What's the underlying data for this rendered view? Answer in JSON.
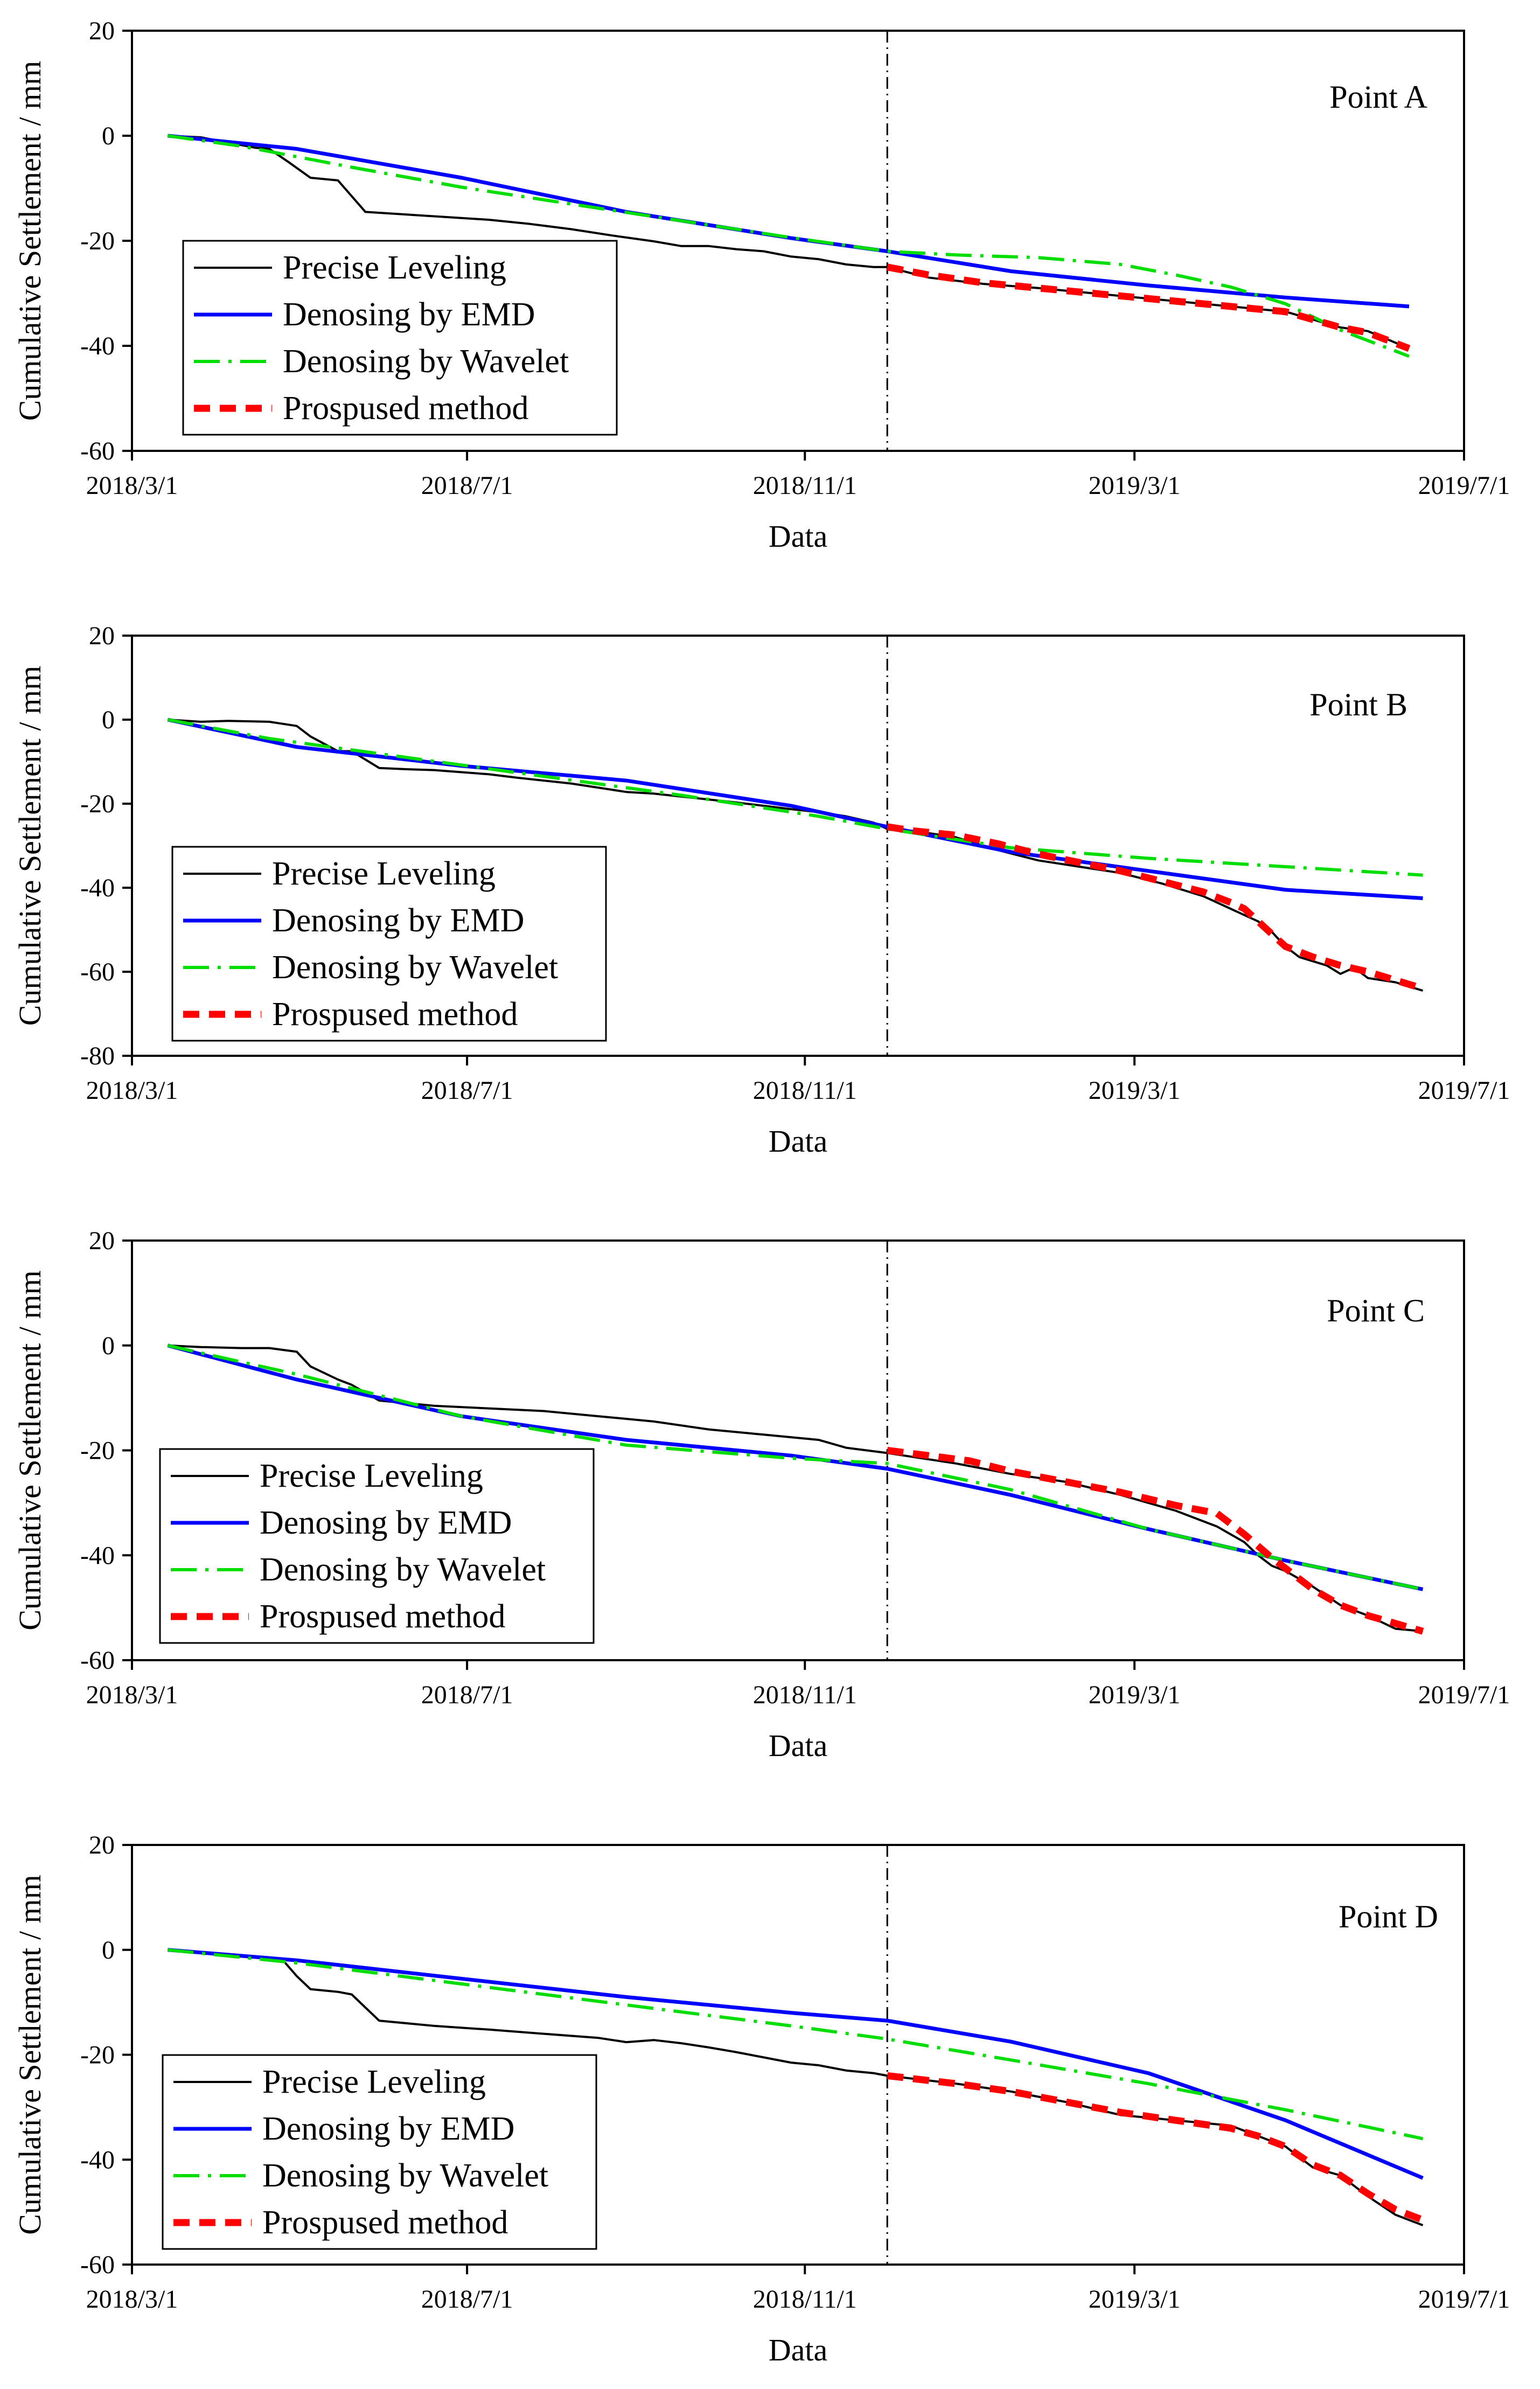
{
  "figure": {
    "x_axis_label": "Data",
    "y_axis_label": "Cumulative Settlement / mm",
    "x_tick_labels": [
      "2018/3/1",
      "2018/7/1",
      "2018/11/1",
      "2019/3/1",
      "2019/7/1"
    ]
  },
  "colors": {
    "precise": "#000000",
    "emd": "#0000ff",
    "wavelet": "#00dd00",
    "proposed": "#ff0000"
  },
  "legend": [
    "Precise Leveling",
    "Denosing by EMD",
    "Denosing by Wavelet",
    "Prospused method"
  ],
  "chart_data": [
    {
      "type": "line",
      "title": "Point A",
      "xlabel": "Data",
      "ylabel": "Cumulative Settlement / mm",
      "x_unit": "days since 2018-03-01",
      "xlim": [
        0,
        485
      ],
      "ylim": [
        -60,
        20
      ],
      "yticks": [
        -60,
        -40,
        -20,
        0,
        20
      ],
      "split_day": 275,
      "series": [
        {
          "name": "Precise Leveling",
          "x": [
            13,
            25,
            45,
            50,
            57,
            65,
            75,
            85,
            100,
            115,
            130,
            145,
            160,
            175,
            190,
            200,
            210,
            220,
            230,
            240,
            250,
            260,
            270,
            275,
            290,
            310,
            330,
            350,
            370,
            390,
            410,
            420,
            430,
            440,
            450,
            465
          ],
          "y": [
            0,
            -0.3,
            -2.3,
            -2.5,
            -5,
            -8,
            -8.5,
            -14.5,
            -15,
            -15.5,
            -16,
            -16.8,
            -17.8,
            -19,
            -20.1,
            -21,
            -21,
            -21.6,
            -22,
            -23,
            -23.5,
            -24.5,
            -25,
            -25,
            -27,
            -28.2,
            -29,
            -30,
            -31,
            -32,
            -33,
            -33.5,
            -35,
            -36.5,
            -37.2,
            -40.5
          ]
        },
        {
          "name": "Denosing by EMD",
          "x": [
            13,
            60,
            120,
            180,
            240,
            275,
            320,
            370,
            420,
            465
          ],
          "y": [
            0,
            -2.5,
            -8,
            -14.5,
            -19.5,
            -22,
            -25.8,
            -28.5,
            -30.8,
            -32.5
          ]
        },
        {
          "name": "Denosing by Wavelet",
          "x": [
            13,
            40,
            80,
            120,
            160,
            200,
            240,
            275,
            300,
            330,
            360,
            380,
            400,
            420,
            440,
            465
          ],
          "y": [
            0,
            -2,
            -6,
            -9.8,
            -13,
            -16.2,
            -19.4,
            -22,
            -22.7,
            -23.2,
            -24.5,
            -26.5,
            -28.8,
            -32,
            -37,
            -42
          ]
        },
        {
          "name": "Prospused method",
          "x": [
            275,
            290,
            310,
            330,
            350,
            370,
            390,
            410,
            420,
            430,
            440,
            450,
            465
          ],
          "y": [
            -25,
            -26.5,
            -28,
            -29,
            -30,
            -31,
            -32,
            -33,
            -33.5,
            -35,
            -36.5,
            -37.5,
            -40.5
          ]
        }
      ]
    },
    {
      "type": "line",
      "title": "Point B",
      "xlabel": "Data",
      "ylabel": "Cumulative Settlement / mm",
      "x_unit": "days since 2018-03-01",
      "xlim": [
        0,
        485
      ],
      "ylim": [
        -80,
        20
      ],
      "yticks": [
        -80,
        -60,
        -40,
        -20,
        0,
        20
      ],
      "split_day": 275,
      "series": [
        {
          "name": "Precise Leveling",
          "x": [
            13,
            25,
            35,
            50,
            60,
            65,
            75,
            80,
            90,
            100,
            110,
            120,
            130,
            140,
            150,
            160,
            170,
            180,
            190,
            200,
            210,
            220,
            230,
            240,
            250,
            260,
            270,
            275,
            285,
            300,
            315,
            330,
            345,
            360,
            375,
            390,
            400,
            410,
            415,
            420,
            425,
            435,
            440,
            445,
            450,
            460,
            470
          ],
          "y": [
            0,
            -0.5,
            -0.3,
            -0.5,
            -1.5,
            -4,
            -7.5,
            -7.5,
            -11.5,
            -11.8,
            -12,
            -12.5,
            -13,
            -13.8,
            -14.5,
            -15.2,
            -16.2,
            -17.2,
            -17.6,
            -18.3,
            -19,
            -19.7,
            -20.5,
            -21.3,
            -22,
            -23,
            -24.5,
            -26,
            -26.5,
            -28,
            -31,
            -33.5,
            -35,
            -36.5,
            -39,
            -42,
            -45,
            -48,
            -50.5,
            -54,
            -56.5,
            -58.5,
            -60.5,
            -59,
            -61.5,
            -62.5,
            -64.5
          ]
        },
        {
          "name": "Denosing by EMD",
          "x": [
            13,
            60,
            120,
            180,
            240,
            275,
            320,
            370,
            420,
            470
          ],
          "y": [
            0,
            -6.5,
            -11,
            -14.5,
            -20.5,
            -25.5,
            -31.5,
            -36,
            -40.5,
            -42.5
          ]
        },
        {
          "name": "Denosing by Wavelet",
          "x": [
            13,
            50,
            100,
            150,
            200,
            250,
            275,
            320,
            370,
            420,
            470
          ],
          "y": [
            0,
            -4.5,
            -9,
            -13.5,
            -18,
            -23,
            -26,
            -30.5,
            -33,
            -35,
            -37
          ]
        },
        {
          "name": "Prospused method",
          "x": [
            275,
            285,
            300,
            315,
            330,
            345,
            360,
            375,
            390,
            400,
            405,
            410,
            415,
            420,
            430,
            440,
            450,
            460,
            470
          ],
          "y": [
            -25.5,
            -26.5,
            -27.5,
            -29.5,
            -32,
            -34,
            -36,
            -38.5,
            -41,
            -43.5,
            -45,
            -48,
            -51,
            -54,
            -56.5,
            -58.5,
            -60,
            -62,
            -64
          ]
        }
      ]
    },
    {
      "type": "line",
      "title": "Point C",
      "xlabel": "Data",
      "ylabel": "Cumulative Settlement / mm",
      "x_unit": "days since 2018-03-01",
      "xlim": [
        0,
        485
      ],
      "ylim": [
        -60,
        20
      ],
      "yticks": [
        -60,
        -40,
        -20,
        0,
        20
      ],
      "split_day": 275,
      "series": [
        {
          "name": "Precise Leveling",
          "x": [
            13,
            25,
            40,
            50,
            60,
            65,
            75,
            80,
            90,
            110,
            130,
            150,
            170,
            190,
            210,
            230,
            250,
            260,
            275,
            300,
            320,
            340,
            360,
            380,
            395,
            405,
            410,
            415,
            420,
            430,
            440,
            450,
            460,
            470
          ],
          "y": [
            0,
            -0.3,
            -0.5,
            -0.5,
            -1.2,
            -4,
            -6.5,
            -7.5,
            -10.5,
            -11.5,
            -12,
            -12.5,
            -13.5,
            -14.5,
            -16,
            -17,
            -18,
            -19.5,
            -20.5,
            -22.5,
            -24.5,
            -26,
            -28.5,
            -31.5,
            -34.5,
            -37.5,
            -40,
            -42,
            -43,
            -46,
            -49.5,
            -51.5,
            -54,
            -54.5
          ]
        },
        {
          "name": "Denosing by EMD",
          "x": [
            13,
            60,
            120,
            180,
            240,
            275,
            320,
            370,
            420,
            470
          ],
          "y": [
            0,
            -6.5,
            -13.5,
            -18,
            -21,
            -23.5,
            -28.5,
            -35,
            -41,
            -46.5
          ]
        },
        {
          "name": "Denosing by Wavelet",
          "x": [
            13,
            60,
            120,
            180,
            240,
            275,
            320,
            370,
            420,
            470
          ],
          "y": [
            0,
            -5.5,
            -13.5,
            -19,
            -21.5,
            -22.5,
            -27.5,
            -35,
            -41,
            -46.5
          ]
        },
        {
          "name": "Prospused method",
          "x": [
            275,
            290,
            305,
            320,
            340,
            360,
            380,
            395,
            405,
            415,
            420,
            430,
            440,
            450,
            460,
            470
          ],
          "y": [
            -20,
            -21,
            -22,
            -24,
            -26,
            -28,
            -30.5,
            -32,
            -36,
            -40.5,
            -42.5,
            -46.5,
            -49.5,
            -51.5,
            -53,
            -54.5
          ]
        }
      ]
    },
    {
      "type": "line",
      "title": "Point D",
      "xlabel": "Data",
      "ylabel": "Cumulative Settlement / mm",
      "x_unit": "days since 2018-03-01",
      "xlim": [
        0,
        485
      ],
      "ylim": [
        -60,
        20
      ],
      "yticks": [
        -60,
        -40,
        -20,
        0,
        20
      ],
      "split_day": 275,
      "series": [
        {
          "name": "Precise Leveling",
          "x": [
            13,
            25,
            40,
            50,
            55,
            60,
            65,
            75,
            80,
            90,
            110,
            130,
            150,
            170,
            180,
            190,
            200,
            210,
            220,
            230,
            240,
            250,
            260,
            270,
            275,
            300,
            320,
            340,
            360,
            380,
            400,
            410,
            420,
            430,
            440,
            450,
            460,
            470
          ],
          "y": [
            0,
            -0.5,
            -1.2,
            -1.5,
            -2,
            -5,
            -7.5,
            -8,
            -8.5,
            -13.5,
            -14.5,
            -15.2,
            -16,
            -16.8,
            -17.6,
            -17.2,
            -17.8,
            -18.6,
            -19.5,
            -20.5,
            -21.5,
            -22,
            -23,
            -23.5,
            -24,
            -25.5,
            -27,
            -29,
            -31.5,
            -32.5,
            -33.5,
            -35.5,
            -37.5,
            -41.5,
            -43,
            -47,
            -50.5,
            -52.5
          ]
        },
        {
          "name": "Denosing by EMD",
          "x": [
            13,
            60,
            120,
            180,
            240,
            275,
            320,
            370,
            420,
            470
          ],
          "y": [
            0,
            -2,
            -5.5,
            -9,
            -12,
            -13.5,
            -17.5,
            -23.5,
            -32.5,
            -43.5
          ]
        },
        {
          "name": "Denosing by Wavelet",
          "x": [
            13,
            60,
            120,
            180,
            240,
            275,
            320,
            370,
            420,
            470
          ],
          "y": [
            0,
            -2.5,
            -6.5,
            -10.5,
            -14.5,
            -17,
            -21,
            -25.5,
            -30.5,
            -36
          ]
        },
        {
          "name": "Prospused method",
          "x": [
            275,
            300,
            320,
            340,
            360,
            380,
            400,
            410,
            420,
            430,
            440,
            450,
            460,
            470
          ],
          "y": [
            -24,
            -25.5,
            -27,
            -29,
            -31,
            -32.5,
            -34,
            -35.5,
            -37.5,
            -41,
            -43,
            -46.5,
            -49.5,
            -51.5
          ]
        }
      ]
    }
  ]
}
